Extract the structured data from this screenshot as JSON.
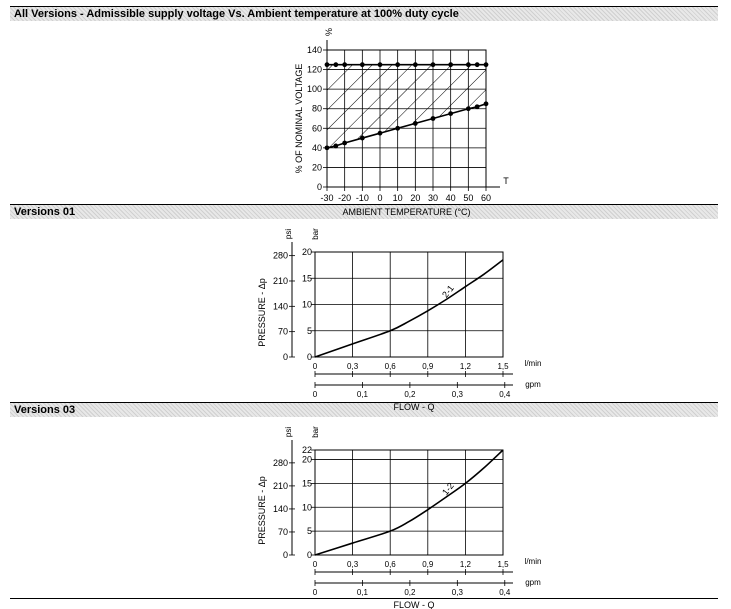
{
  "sections": [
    {
      "title": "All Versions - Admissible supply voltage Vs. Ambient temperature at 100% duty cycle"
    },
    {
      "title": "Versions 01"
    },
    {
      "title": "Versions 03"
    }
  ],
  "chart_data": [
    {
      "type": "area",
      "ylabel": "% OF NOMINAL VOLTAGE",
      "xlabel": "AMBIENT TEMPERATURE (°C)",
      "x_unit": "T",
      "y_unit": "%",
      "x_ticks": [
        "-30",
        "-20",
        "-10",
        "0",
        "10",
        "20",
        "30",
        "40",
        "50",
        "60"
      ],
      "y_ticks": [
        "0",
        "20",
        "40",
        "60",
        "80",
        "100",
        "120",
        "140"
      ],
      "xlim": [
        -30,
        60
      ],
      "ylim": [
        0,
        140
      ],
      "grid": true,
      "series": [
        {
          "x": [
            -30,
            -25,
            -20,
            -10,
            0,
            10,
            20,
            30,
            40,
            50,
            55,
            60
          ],
          "y": [
            125,
            125,
            125,
            125,
            125,
            125,
            125,
            125,
            125,
            125,
            125,
            125
          ]
        },
        {
          "x": [
            -30,
            -25,
            -20,
            -10,
            0,
            10,
            20,
            30,
            40,
            50,
            55,
            60
          ],
          "y": [
            40,
            42,
            45,
            50,
            55,
            60,
            65,
            70,
            75,
            80,
            82,
            85
          ]
        }
      ]
    },
    {
      "type": "line",
      "ylabel": "PRESSURE - Δp",
      "xlabel": "FLOW - Q",
      "y_unit_left": "psi",
      "y_unit_right": "bar",
      "x_unit_top": "l/min",
      "x_unit_bottom": "gpm",
      "x_ticks": [
        "0",
        "0,3",
        "0,6",
        "0,9",
        "1,2",
        "1,5"
      ],
      "x2_ticks": [
        "0",
        "0,1",
        "0,2",
        "0,3",
        "0,4"
      ],
      "y_ticks": [
        "0",
        "5",
        "10",
        "15",
        "20"
      ],
      "y2_ticks": [
        "0",
        "70",
        "140",
        "210",
        "280"
      ],
      "xlim": [
        0,
        1.5
      ],
      "ylim": [
        0,
        20
      ],
      "grid": true,
      "curve_label": "2-1",
      "x": [
        0,
        0.3,
        0.6,
        0.75,
        0.9,
        1.05,
        1.2,
        1.35,
        1.5
      ],
      "y": [
        0,
        2.5,
        5,
        6.8,
        8.8,
        11,
        13.4,
        15.8,
        18.5
      ]
    },
    {
      "type": "line",
      "ylabel": "PRESSURE - Δp",
      "xlabel": "FLOW - Q",
      "y_unit_left": "psi",
      "y_unit_right": "bar",
      "x_unit_top": "l/min",
      "x_unit_bottom": "gpm",
      "x_ticks": [
        "0",
        "0,3",
        "0,6",
        "0,9",
        "1,2",
        "1,5"
      ],
      "x2_ticks": [
        "0",
        "0,1",
        "0,2",
        "0,3",
        "0,4"
      ],
      "y_ticks": [
        "0",
        "5",
        "10",
        "15",
        "20",
        "22"
      ],
      "y2_ticks": [
        "0",
        "70",
        "140",
        "210",
        "280"
      ],
      "xlim": [
        0,
        1.5
      ],
      "ylim": [
        0,
        22
      ],
      "grid": true,
      "curve_label": "1-2",
      "x": [
        0,
        0.3,
        0.6,
        0.75,
        0.9,
        1.05,
        1.2,
        1.35,
        1.5
      ],
      "y": [
        0,
        2.5,
        5,
        7,
        9.5,
        12.2,
        15,
        18.3,
        22
      ]
    }
  ]
}
